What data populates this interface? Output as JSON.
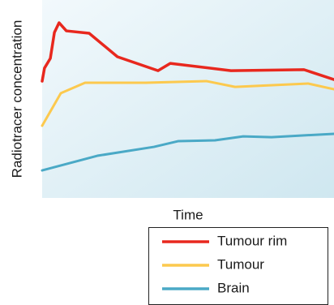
{
  "chart_data": {
    "type": "line",
    "x_label": "Time",
    "y_label": "Radiotracer concentration",
    "xlim": [
      0,
      100
    ],
    "ylim": [
      0,
      100
    ],
    "series": [
      {
        "name": "Tumour rim",
        "color": "#e8281e",
        "x": [
          0,
          0.8,
          2.8,
          4.2,
          5.8,
          8.3,
          16.1,
          25.8,
          39.7,
          43.9,
          64.7,
          89.7,
          100
        ],
        "values": [
          59,
          65.6,
          70.5,
          83.6,
          88.5,
          84.4,
          83.2,
          71.3,
          64.3,
          68,
          64.3,
          64.8,
          59.8
        ]
      },
      {
        "name": "Tumour",
        "color": "#fcc94e",
        "x": [
          0,
          6.4,
          14.7,
          35.6,
          56.4,
          66.1,
          91.1,
          100
        ],
        "values": [
          36.5,
          52.9,
          58.2,
          58.2,
          59,
          56.1,
          57.8,
          54.9
        ]
      },
      {
        "name": "Brain",
        "color": "#4aa9c6",
        "x": [
          0,
          18.9,
          38.3,
          46.7,
          59.2,
          68.9,
          78.6,
          100
        ],
        "values": [
          13.9,
          21.3,
          25.8,
          28.7,
          29.1,
          31.1,
          30.7,
          32.4
        ]
      }
    ]
  }
}
